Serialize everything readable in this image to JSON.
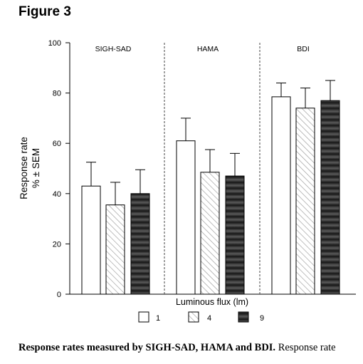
{
  "figure_label": "Figure 3",
  "caption": {
    "bold": "Response rates measured by SIGH-SAD, HAMA and BDI.",
    "rest": " Response rate"
  },
  "chart_data": {
    "type": "bar",
    "ylabel_line1": "Response rate",
    "ylabel_line2": "% ± SEM",
    "xlabel": "Luminous flux (lm)",
    "ylim": [
      0,
      100
    ],
    "yticks": [
      0,
      20,
      40,
      60,
      80,
      100
    ],
    "grid": false,
    "legend_position": "bottom",
    "series_names": [
      "1",
      "4",
      "9"
    ],
    "groups": [
      {
        "name": "SIGH-SAD",
        "values": [
          43,
          35.5,
          40
        ],
        "errors": [
          9.5,
          9,
          9.5
        ]
      },
      {
        "name": "HAMA",
        "values": [
          61,
          48.5,
          47
        ],
        "errors": [
          9,
          9,
          9
        ]
      },
      {
        "name": "BDI",
        "values": [
          78.5,
          74,
          77
        ],
        "errors": [
          5.5,
          8,
          8
        ]
      }
    ]
  }
}
